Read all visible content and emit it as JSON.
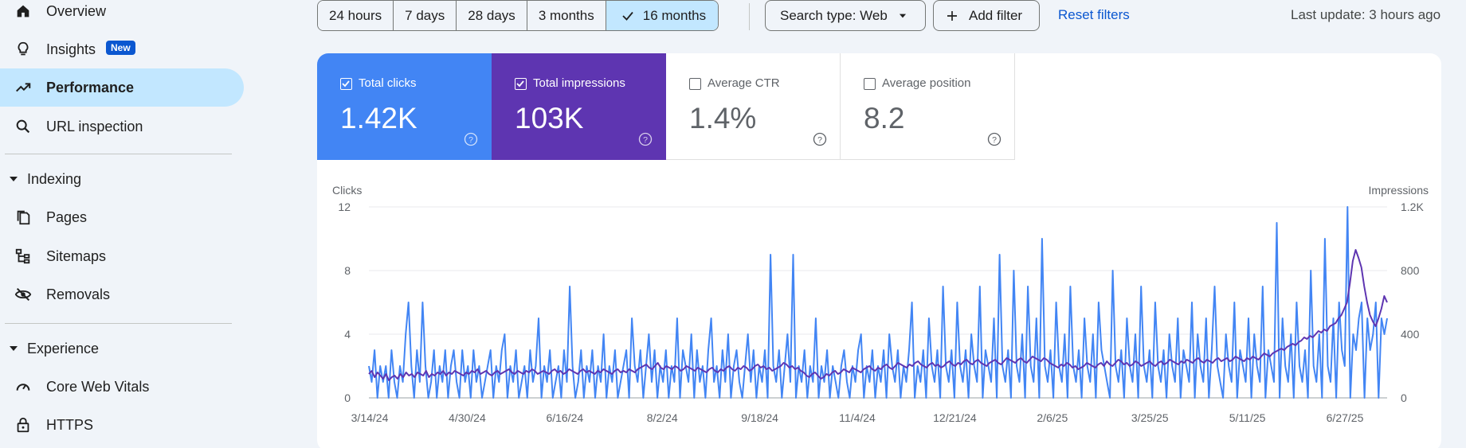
{
  "sidebar": {
    "items": [
      {
        "label": "Overview",
        "icon": "home-icon"
      },
      {
        "label": "Insights",
        "badge": "New",
        "icon": "lightbulb-icon"
      },
      {
        "label": "Performance",
        "icon": "trending-up-icon",
        "active": true
      },
      {
        "label": "URL inspection",
        "icon": "search-icon"
      }
    ],
    "indexing": {
      "label": "Indexing",
      "items": [
        {
          "label": "Pages",
          "icon": "pages-icon"
        },
        {
          "label": "Sitemaps",
          "icon": "sitemap-icon"
        },
        {
          "label": "Removals",
          "icon": "eye-off-icon"
        }
      ]
    },
    "experience": {
      "label": "Experience",
      "items": [
        {
          "label": "Core Web Vitals",
          "icon": "speed-icon"
        },
        {
          "label": "HTTPS",
          "icon": "lock-icon"
        }
      ]
    }
  },
  "toolbar": {
    "ranges": [
      "24 hours",
      "7 days",
      "28 days",
      "3 months",
      "16 months"
    ],
    "selected_range": "16 months",
    "search_type": "Search type: Web",
    "add_filter": "Add filter",
    "reset_filters": "Reset filters",
    "last_update": "Last update: 3 hours ago"
  },
  "metrics": {
    "clicks": {
      "label": "Total clicks",
      "value": "1.42K",
      "checked": true,
      "color": "#4285f4"
    },
    "impressions": {
      "label": "Total impressions",
      "value": "103K",
      "checked": true,
      "color": "#5e35b1"
    },
    "ctr": {
      "label": "Average CTR",
      "value": "1.4%",
      "checked": false
    },
    "position": {
      "label": "Average position",
      "value": "8.2",
      "checked": false
    }
  },
  "chart_data": {
    "type": "line",
    "left_axis_title": "Clicks",
    "right_axis_title": "Impressions",
    "left_ticks": [
      "0",
      "4",
      "8",
      "12"
    ],
    "right_ticks": [
      "0",
      "400",
      "800",
      "1.2K"
    ],
    "ylim_left": [
      0,
      12
    ],
    "ylim_right": [
      0,
      1200
    ],
    "x_tick_labels": [
      "3/14/24",
      "4/30/24",
      "6/16/24",
      "8/2/24",
      "9/18/24",
      "11/4/24",
      "12/21/24",
      "2/6/25",
      "3/25/25",
      "5/11/25",
      "6/27/25"
    ],
    "x_start": "3/14/24",
    "x_end": "7/7/25",
    "grid": true,
    "series": [
      {
        "name": "Clicks",
        "axis": "left",
        "color": "#4285f4",
        "values": [
          2,
          1,
          3,
          0,
          2,
          1,
          2,
          0,
          3,
          1,
          0,
          2,
          1,
          4,
          6,
          2,
          0,
          3,
          1,
          6,
          2,
          0,
          1,
          3,
          0,
          2,
          1,
          3,
          0,
          2,
          3,
          1,
          0,
          3,
          1,
          2,
          0,
          3,
          1,
          2,
          0,
          1,
          2,
          3,
          0,
          2,
          1,
          3,
          4,
          0,
          2,
          1,
          3,
          0,
          1,
          2,
          0,
          3,
          1,
          2,
          5,
          0,
          2,
          1,
          3,
          0,
          1,
          2,
          0,
          3,
          1,
          7,
          2,
          0,
          1,
          3,
          0,
          2,
          1,
          3,
          0,
          2,
          1,
          4,
          0,
          2,
          1,
          3,
          0,
          1,
          2,
          3,
          0,
          5,
          2,
          1,
          3,
          0,
          2,
          4,
          1,
          3,
          0,
          2,
          1,
          3,
          0,
          2,
          1,
          5,
          0,
          3,
          2,
          1,
          4,
          0,
          3,
          1,
          2,
          0,
          3,
          5,
          1,
          2,
          0,
          3,
          1,
          4,
          0,
          2,
          3,
          1,
          0,
          2,
          4,
          1,
          3,
          0,
          2,
          1,
          3,
          0,
          9,
          2,
          1,
          3,
          0,
          2,
          4,
          1,
          9,
          0,
          2,
          1,
          3,
          0,
          2,
          1,
          5,
          0,
          2,
          1,
          3,
          0,
          2,
          1,
          0,
          2,
          3,
          1,
          0,
          2,
          1,
          3,
          4,
          0,
          2,
          1,
          3,
          0,
          2,
          1,
          3,
          0,
          4,
          2,
          1,
          3,
          0,
          2,
          1,
          3,
          6,
          0,
          2,
          1,
          3,
          0,
          5,
          2,
          1,
          3,
          0,
          7,
          2,
          1,
          3,
          0,
          6,
          2,
          1,
          3,
          0,
          4,
          2,
          1,
          7,
          0,
          3,
          2,
          1,
          5,
          0,
          9,
          2,
          1,
          3,
          0,
          8,
          2,
          1,
          4,
          0,
          7,
          2,
          1,
          5,
          0,
          10,
          2,
          1,
          3,
          0,
          6,
          2,
          1,
          4,
          0,
          7,
          2,
          1,
          3,
          0,
          5,
          2,
          1,
          4,
          0,
          6,
          3,
          2,
          1,
          0,
          8,
          2,
          1,
          3,
          0,
          5,
          2,
          1,
          4,
          0,
          7,
          2,
          1,
          3,
          0,
          6,
          2,
          1,
          3,
          0,
          4,
          2,
          1,
          5,
          0,
          3,
          2,
          1,
          6,
          0,
          4,
          2,
          1,
          5,
          0,
          3,
          7,
          2,
          1,
          0,
          4,
          2,
          1,
          6,
          0,
          3,
          2,
          1,
          5,
          0,
          4,
          2,
          1,
          7,
          0,
          3,
          2,
          1,
          11,
          0,
          5,
          2,
          1,
          4,
          0,
          6,
          2,
          1,
          3,
          0,
          8,
          2,
          1,
          4,
          0,
          10,
          2,
          1,
          5,
          0,
          6,
          3,
          2,
          12,
          0,
          4,
          3,
          5,
          6,
          0,
          5,
          3,
          4,
          6,
          0,
          5,
          4,
          5
        ]
      },
      {
        "name": "Impressions",
        "axis": "right",
        "color": "#5e35b1",
        "values": [
          150,
          170,
          130,
          160,
          140,
          120,
          150,
          110,
          130,
          140,
          120,
          150,
          130,
          160,
          140,
          150,
          130,
          160,
          150,
          140,
          170,
          130,
          150,
          140,
          160,
          150,
          170,
          140,
          160,
          150,
          170,
          160,
          150,
          140,
          160,
          150,
          170,
          160,
          180,
          150,
          160,
          170,
          150,
          140,
          160,
          170,
          150,
          160,
          170,
          180,
          160,
          150,
          170,
          160,
          150,
          170,
          160,
          180,
          170,
          150,
          160,
          170,
          160,
          150,
          170,
          180,
          160,
          170,
          150,
          160,
          180,
          170,
          160,
          150,
          170,
          180,
          160,
          170,
          160,
          150,
          170,
          160,
          180,
          170,
          160,
          150,
          170,
          180,
          160,
          170,
          160,
          180,
          170,
          160,
          180,
          190,
          200,
          210,
          190,
          180,
          200,
          220,
          190,
          180,
          200,
          190,
          180,
          200,
          190,
          170,
          180,
          200,
          190,
          180,
          170,
          190,
          180,
          170,
          160,
          180,
          190,
          170,
          160,
          180,
          170,
          190,
          200,
          180,
          170,
          190,
          180,
          200,
          190,
          170,
          180,
          200,
          210,
          190,
          200,
          180,
          190,
          170,
          180,
          190,
          200,
          220,
          210,
          190,
          200,
          180,
          190,
          170,
          160,
          140,
          130,
          150,
          160,
          140,
          120,
          130,
          150,
          140,
          160,
          170,
          150,
          160,
          180,
          170,
          160,
          190,
          180,
          170,
          160,
          180,
          190,
          200,
          180,
          170,
          190,
          180,
          200,
          210,
          190,
          180,
          200,
          220,
          210,
          200,
          190,
          210,
          200,
          220,
          230,
          210,
          200,
          190,
          210,
          220,
          200,
          210,
          190,
          200,
          220,
          230,
          210,
          200,
          220,
          210,
          230,
          240,
          220,
          210,
          230,
          240,
          220,
          210,
          200,
          220,
          230,
          240,
          220,
          210,
          230,
          250,
          240,
          230,
          220,
          240,
          250,
          230,
          220,
          240,
          260,
          250,
          240,
          230,
          250,
          240,
          220,
          210,
          200,
          190,
          210,
          200,
          220,
          210,
          190,
          200,
          180,
          190,
          200,
          220,
          210,
          200,
          190,
          210,
          220,
          200,
          230,
          210,
          200,
          220,
          240,
          230,
          210,
          220,
          200,
          210,
          230,
          220,
          200,
          210,
          220,
          230,
          210,
          200,
          220,
          230,
          210,
          220,
          240,
          230,
          220,
          210,
          230,
          220,
          240,
          230,
          220,
          240,
          250,
          230,
          220,
          240,
          230,
          220,
          240,
          250,
          230,
          240,
          250,
          230,
          240,
          260,
          250,
          240,
          230,
          250,
          240,
          260,
          250,
          240,
          260,
          280,
          270,
          260,
          280,
          290,
          300,
          310,
          300,
          320,
          330,
          340,
          330,
          350,
          360,
          380,
          370,
          390,
          380,
          400,
          420,
          410,
          430,
          420,
          450,
          460,
          470,
          500,
          520,
          560,
          600,
          720,
          860,
          930,
          880,
          820,
          700,
          600,
          520,
          480,
          450,
          500,
          560,
          640,
          600
        ]
      }
    ]
  }
}
